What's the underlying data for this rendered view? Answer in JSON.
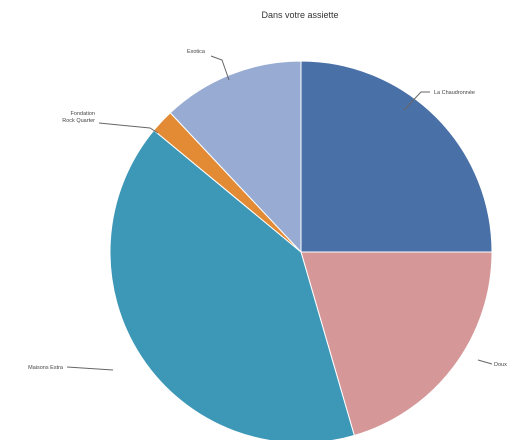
{
  "chart_data": {
    "type": "pie",
    "title": "Dans votre assiette",
    "slices": [
      {
        "label": "La Chaudronnée",
        "value": 25,
        "color": "#4A70A8"
      },
      {
        "label": "Doux",
        "value": 20.5,
        "color": "#D59797"
      },
      {
        "label": "Maisons Estra",
        "value": 40.5,
        "color": "#3D97B6"
      },
      {
        "label": "Fondation Rock Quarter",
        "value": 2,
        "color": "#E38A35"
      },
      {
        "label": "Exotica",
        "value": 12,
        "color": "#97ABD3"
      }
    ],
    "start": "12 o'clock",
    "direction": "clockwise",
    "legend": "none"
  }
}
